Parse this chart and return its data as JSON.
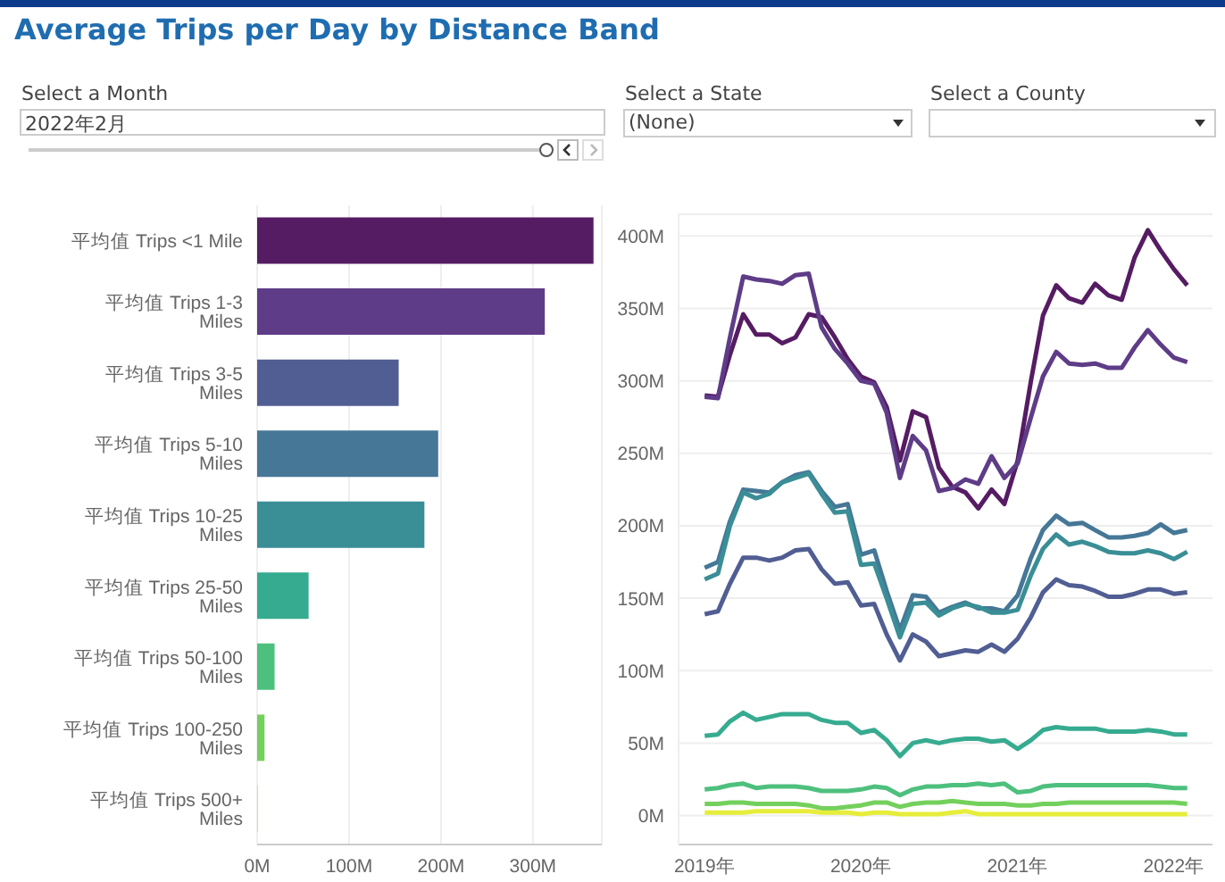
{
  "chart_data": [
    {
      "type": "other",
      "title": "Average Trips per Day by Distance Band",
      "annotations": [
        "Select a Month",
        "2022年2月",
        "Select a State",
        "(None)",
        "Select a County"
      ]
    },
    {
      "type": "bar",
      "orientation": "horizontal",
      "categories": [
        "平均值 Trips <1 Mile",
        "平均值 Trips 1-3 Miles",
        "平均值 Trips 3-5 Miles",
        "平均值 Trips 5-10 Miles",
        "平均值 Trips 10-25 Miles",
        "平均值 Trips 25-50 Miles",
        "平均值 Trips 50-100 Miles",
        "平均值 Trips 100-250 Miles",
        "平均值 Trips 500+ Miles"
      ],
      "values": [
        366,
        313,
        154,
        197,
        182,
        56,
        19,
        8,
        1
      ],
      "colors": [
        "#561c63",
        "#5e3c87",
        "#515e93",
        "#467797",
        "#3a8e96",
        "#36ab90",
        "#4ec07e",
        "#74d05c",
        "#e6ed3a"
      ],
      "xlim": [
        0,
        375
      ],
      "xticks": [
        {
          "value": 0,
          "label": "0M"
        },
        {
          "value": 100,
          "label": "100M"
        },
        {
          "value": 200,
          "label": "200M"
        },
        {
          "value": 300,
          "label": "300M"
        }
      ],
      "grid": "x"
    },
    {
      "type": "line",
      "x": [
        "2019-01",
        "2019-02",
        "2019-03",
        "2019-04",
        "2019-05",
        "2019-06",
        "2019-07",
        "2019-08",
        "2019-09",
        "2019-10",
        "2019-11",
        "2019-12",
        "2020-01",
        "2020-02",
        "2020-03",
        "2020-04",
        "2020-05",
        "2020-06",
        "2020-07",
        "2020-08",
        "2020-09",
        "2020-10",
        "2020-11",
        "2020-12",
        "2021-01",
        "2021-02",
        "2021-03",
        "2021-04",
        "2021-05",
        "2021-06",
        "2021-07",
        "2021-08",
        "2021-09",
        "2021-10",
        "2021-11",
        "2021-12",
        "2022-01",
        "2022-02"
      ],
      "series": [
        {
          "color": "#561c63",
          "values": [
            290,
            289,
            318,
            346,
            332,
            332,
            326,
            330,
            346,
            344,
            330,
            315,
            303,
            299,
            282,
            245,
            279,
            275,
            240,
            227,
            223,
            212,
            225,
            215,
            245,
            300,
            345,
            366,
            357,
            354,
            367,
            359,
            356,
            385,
            404,
            390,
            377,
            366
          ]
        },
        {
          "color": "#5e3c87",
          "values": [
            289,
            288,
            330,
            372,
            370,
            369,
            367,
            373,
            374,
            337,
            322,
            312,
            300,
            298,
            278,
            233,
            262,
            252,
            224,
            226,
            232,
            229,
            248,
            233,
            243,
            275,
            303,
            320,
            312,
            311,
            312,
            309,
            309,
            323,
            335,
            325,
            316,
            313
          ]
        },
        {
          "color": "#515e93",
          "values": [
            139,
            141,
            160,
            178,
            178,
            176,
            178,
            183,
            184,
            170,
            160,
            161,
            145,
            146,
            125,
            107,
            125,
            120,
            110,
            112,
            114,
            113,
            118,
            113,
            122,
            137,
            154,
            163,
            159,
            158,
            155,
            151,
            151,
            153,
            156,
            156,
            153,
            154
          ]
        },
        {
          "color": "#467797",
          "values": [
            171,
            175,
            203,
            225,
            224,
            223,
            230,
            235,
            237,
            224,
            213,
            215,
            180,
            183,
            155,
            128,
            152,
            151,
            140,
            144,
            147,
            143,
            143,
            141,
            152,
            178,
            197,
            207,
            201,
            202,
            197,
            192,
            192,
            193,
            195,
            201,
            195,
            197
          ]
        },
        {
          "color": "#3a8e96",
          "values": [
            163,
            167,
            200,
            223,
            219,
            222,
            230,
            233,
            236,
            222,
            209,
            210,
            173,
            174,
            150,
            123,
            146,
            147,
            138,
            143,
            146,
            144,
            140,
            140,
            142,
            166,
            184,
            194,
            187,
            189,
            186,
            182,
            181,
            181,
            183,
            181,
            177,
            182
          ]
        },
        {
          "color": "#36ab90",
          "values": [
            55,
            56,
            65,
            71,
            66,
            68,
            70,
            70,
            70,
            66,
            64,
            64,
            57,
            59,
            52,
            41,
            50,
            52,
            50,
            52,
            53,
            53,
            51,
            52,
            46,
            52,
            59,
            61,
            60,
            60,
            60,
            58,
            58,
            58,
            59,
            58,
            56,
            56
          ]
        },
        {
          "color": "#4ec07e",
          "values": [
            18,
            19,
            21,
            22,
            19,
            20,
            20,
            20,
            19,
            17,
            17,
            17,
            18,
            20,
            19,
            14,
            18,
            20,
            20,
            21,
            21,
            22,
            21,
            22,
            16,
            17,
            20,
            21,
            21,
            21,
            21,
            21,
            21,
            21,
            21,
            20,
            19,
            19
          ]
        },
        {
          "color": "#74d05c",
          "values": [
            8,
            8,
            9,
            9,
            8,
            8,
            8,
            8,
            7,
            5,
            5,
            6,
            7,
            9,
            9,
            6,
            8,
            9,
            9,
            10,
            9,
            8,
            8,
            8,
            7,
            7,
            8,
            8,
            9,
            9,
            9,
            9,
            9,
            9,
            9,
            9,
            9,
            8
          ]
        },
        {
          "color": "#e6ed3a",
          "values": [
            2,
            2,
            2,
            2,
            3,
            3,
            3,
            3,
            3,
            2,
            2,
            2,
            1,
            2,
            2,
            1,
            1,
            1,
            1,
            2,
            3,
            1,
            1,
            1,
            1,
            1,
            1,
            1,
            1,
            1,
            1,
            1,
            1,
            1,
            1,
            1,
            1,
            1
          ]
        }
      ],
      "xlim": [
        "2018-11",
        "2022-04"
      ],
      "xticks": [
        {
          "value": "2019",
          "label": "2019年"
        },
        {
          "value": "2020",
          "label": "2020年"
        },
        {
          "value": "2021",
          "label": "2021年"
        },
        {
          "value": "2022",
          "label": "2022年"
        }
      ],
      "ylim": [
        -20,
        415
      ],
      "yticks": [
        {
          "value": 0,
          "label": "0M"
        },
        {
          "value": 50,
          "label": "50M"
        },
        {
          "value": 100,
          "label": "100M"
        },
        {
          "value": 150,
          "label": "150M"
        },
        {
          "value": 200,
          "label": "200M"
        },
        {
          "value": 250,
          "label": "250M"
        },
        {
          "value": 300,
          "label": "300M"
        },
        {
          "value": 350,
          "label": "350M"
        },
        {
          "value": 400,
          "label": "400M"
        }
      ],
      "grid": "y"
    }
  ]
}
